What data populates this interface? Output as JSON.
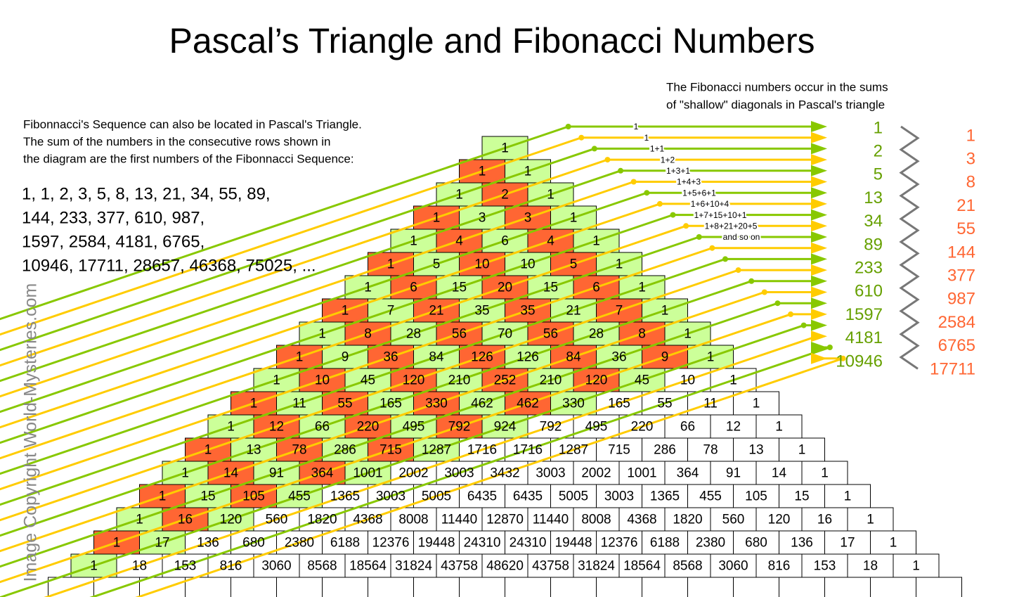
{
  "title": "Pascal’s Triangle and Fibonacci Numbers",
  "intro": [
    "Fibonnacci's Sequence can also be located in Pascal's Triangle.",
    "The sum of the numbers in the consecutive rows shown in",
    "the diagram are the first numbers of the Fibonnacci Sequence:"
  ],
  "sequence": [
    "1, 1, 2, 3, 5, 8, 13, 21, 34, 55, 89,",
    "144, 233, 377, 610, 987,",
    "1597, 2584, 4181, 6765,",
    "10946, 17711, 28657, 46368, 75025, ..."
  ],
  "caption": [
    "The Fibonacci numbers occur in the sums",
    "of \"shallow\" diagonals in Pascal's triangle"
  ],
  "diagonal_labels": [
    "1",
    "1",
    "1+1",
    "1+2",
    "1+3+1",
    "1+4+3",
    "1+5+6+1",
    "1+6+10+4",
    "1+7+15+10+1",
    "1+8+21+20+5",
    "and so on"
  ],
  "fib_even": [
    1,
    2,
    5,
    13,
    34,
    89,
    233,
    610,
    1597,
    4181,
    10946
  ],
  "fib_odd": [
    1,
    3,
    8,
    21,
    55,
    144,
    377,
    987,
    2584,
    6765,
    17711
  ],
  "watermark": "Image Copyright World-Mysteries.com",
  "triangle": [
    [
      1
    ],
    [
      1,
      1
    ],
    [
      1,
      2,
      1
    ],
    [
      1,
      3,
      3,
      1
    ],
    [
      1,
      4,
      6,
      4,
      1
    ],
    [
      1,
      5,
      10,
      10,
      5,
      1
    ],
    [
      1,
      6,
      15,
      20,
      15,
      6,
      1
    ],
    [
      1,
      7,
      21,
      35,
      35,
      21,
      7,
      1
    ],
    [
      1,
      8,
      28,
      56,
      70,
      56,
      28,
      8,
      1
    ],
    [
      1,
      9,
      36,
      84,
      126,
      126,
      84,
      36,
      9,
      1
    ],
    [
      1,
      10,
      45,
      120,
      210,
      252,
      210,
      120,
      45,
      10,
      1
    ],
    [
      1,
      11,
      55,
      165,
      330,
      462,
      462,
      330,
      165,
      55,
      11,
      1
    ],
    [
      1,
      12,
      66,
      220,
      495,
      792,
      924,
      792,
      495,
      220,
      66,
      12,
      1
    ],
    [
      1,
      13,
      78,
      286,
      715,
      1287,
      1716,
      1716,
      1287,
      715,
      286,
      78,
      13,
      1
    ],
    [
      1,
      14,
      91,
      364,
      1001,
      2002,
      3003,
      3432,
      3003,
      2002,
      1001,
      364,
      91,
      14,
      1
    ],
    [
      1,
      15,
      105,
      455,
      1365,
      3003,
      5005,
      6435,
      6435,
      5005,
      3003,
      1365,
      455,
      105,
      15,
      1
    ],
    [
      1,
      16,
      120,
      560,
      1820,
      4368,
      8008,
      11440,
      12870,
      11440,
      8008,
      4368,
      1820,
      560,
      120,
      16,
      1
    ],
    [
      1,
      17,
      136,
      680,
      2380,
      6188,
      12376,
      19448,
      24310,
      24310,
      19448,
      12376,
      6188,
      2380,
      680,
      136,
      17,
      1
    ],
    [
      1,
      18,
      153,
      816,
      3060,
      8568,
      18564,
      31824,
      43758,
      48620,
      43758,
      31824,
      18564,
      8568,
      3060,
      816,
      153,
      18,
      1
    ]
  ]
}
